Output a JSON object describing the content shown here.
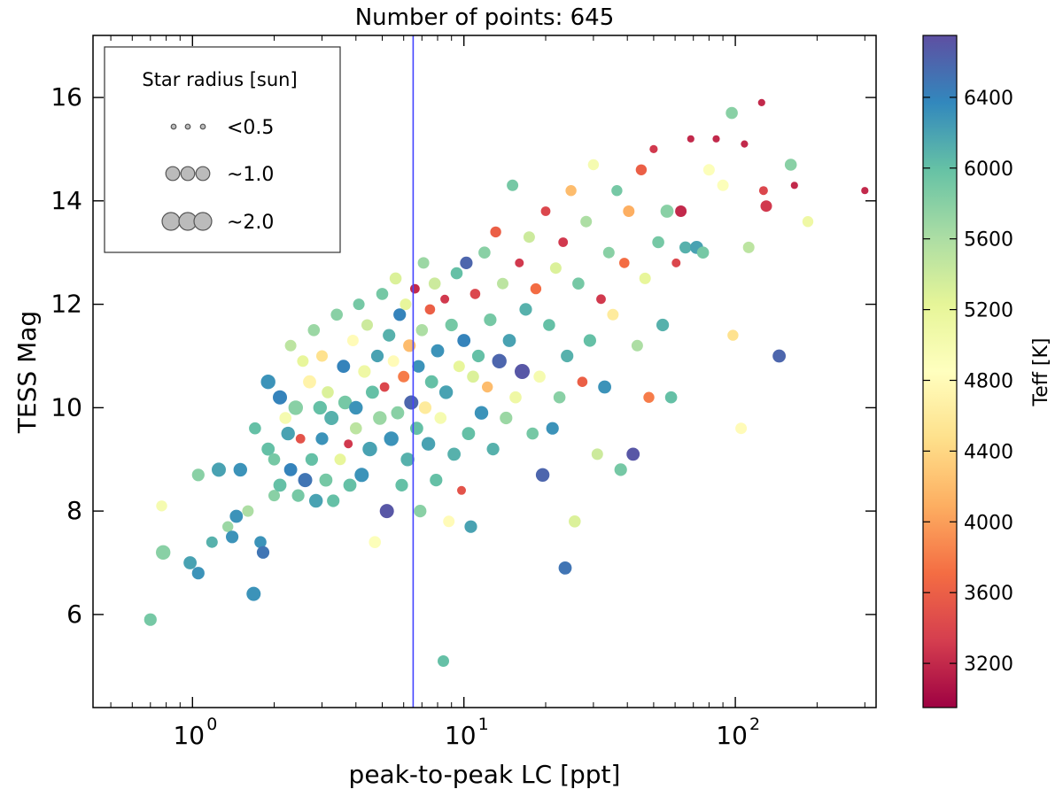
{
  "chart_data": {
    "type": "scatter",
    "title": "Number of points: 645",
    "xlabel": "peak-to-peak LC [ppt]",
    "ylabel": "TESS Mag",
    "xscale": "log",
    "xlim": [
      0.43,
      330
    ],
    "ylim": [
      4.2,
      17.2
    ],
    "xticks": [
      {
        "value": 1,
        "base": "10",
        "exp": "0"
      },
      {
        "value": 10,
        "base": "10",
        "exp": "1"
      },
      {
        "value": 100,
        "base": "10",
        "exp": "2"
      }
    ],
    "yticks": [
      6,
      8,
      10,
      12,
      14,
      16
    ],
    "vline": {
      "x": 6.5,
      "color": "#4444ff"
    },
    "colorbar": {
      "label": "Teff [K]",
      "range": [
        2950,
        6750
      ],
      "ticks": [
        3200,
        3600,
        4000,
        4400,
        4800,
        5200,
        5600,
        6000,
        6400
      ],
      "colormap": "Spectral"
    },
    "legend": {
      "title": "Star radius [sun]",
      "position": "upper-left",
      "entries": [
        {
          "label": "<0.5",
          "radius_sun": 0.3
        },
        {
          "label": "~1.0",
          "radius_sun": 1.0
        },
        {
          "label": "~2.0",
          "radius_sun": 2.0
        }
      ]
    },
    "points_note": "Representative points: [peak-to-peak ppt, TESS mag, Teff K, radius sun]",
    "points": [
      [
        0.7,
        5.9,
        5900,
        1.2
      ],
      [
        0.78,
        7.2,
        5800,
        1.6
      ],
      [
        0.77,
        8.1,
        5000,
        0.9
      ],
      [
        0.98,
        7.0,
        6200,
        1.3
      ],
      [
        1.05,
        6.8,
        6300,
        1.2
      ],
      [
        1.05,
        8.7,
        5800,
        1.2
      ],
      [
        1.18,
        7.4,
        6100,
        1.0
      ],
      [
        1.25,
        8.8,
        6200,
        1.5
      ],
      [
        1.35,
        7.7,
        5700,
        0.9
      ],
      [
        1.4,
        7.5,
        6300,
        1.2
      ],
      [
        1.45,
        7.9,
        6300,
        1.3
      ],
      [
        1.5,
        8.8,
        6300,
        1.4
      ],
      [
        1.6,
        8.0,
        5600,
        1.0
      ],
      [
        1.68,
        6.4,
        6300,
        1.5
      ],
      [
        1.7,
        9.6,
        6000,
        1.1
      ],
      [
        1.78,
        7.4,
        6300,
        1.1
      ],
      [
        1.82,
        7.2,
        6500,
        1.2
      ],
      [
        1.9,
        9.2,
        6000,
        1.3
      ],
      [
        1.9,
        10.5,
        6300,
        1.6
      ],
      [
        2.0,
        9.0,
        5900,
        1.1
      ],
      [
        2.0,
        8.3,
        5800,
        1.0
      ],
      [
        2.1,
        10.2,
        6400,
        1.5
      ],
      [
        2.1,
        8.5,
        6000,
        1.3
      ],
      [
        2.2,
        9.8,
        5000,
        1.1
      ],
      [
        2.25,
        9.5,
        6200,
        1.4
      ],
      [
        2.3,
        11.2,
        5500,
        1.0
      ],
      [
        2.3,
        8.8,
        6400,
        1.3
      ],
      [
        2.4,
        10.0,
        5800,
        1.6
      ],
      [
        2.45,
        8.3,
        5900,
        1.2
      ],
      [
        2.5,
        9.4,
        3500,
        0.7
      ],
      [
        2.55,
        10.9,
        5200,
        1.0
      ],
      [
        2.6,
        8.6,
        6500,
        1.5
      ],
      [
        2.7,
        10.5,
        4700,
        1.3
      ],
      [
        2.75,
        9.0,
        6000,
        1.2
      ],
      [
        2.8,
        11.5,
        5700,
        1.1
      ],
      [
        2.85,
        8.2,
        6200,
        1.4
      ],
      [
        2.95,
        10.0,
        6000,
        1.4
      ],
      [
        3.0,
        9.4,
        6300,
        1.2
      ],
      [
        3.0,
        11.0,
        4500,
        1.0
      ],
      [
        3.1,
        8.6,
        5900,
        1.3
      ],
      [
        3.15,
        10.3,
        5300,
        1.1
      ],
      [
        3.25,
        9.8,
        6100,
        1.5
      ],
      [
        3.3,
        8.2,
        6000,
        1.2
      ],
      [
        3.4,
        11.8,
        5800,
        1.1
      ],
      [
        3.5,
        9.0,
        5200,
        1.0
      ],
      [
        3.6,
        10.8,
        6400,
        1.3
      ],
      [
        3.65,
        10.1,
        5900,
        1.4
      ],
      [
        3.75,
        9.3,
        3300,
        0.6
      ],
      [
        3.8,
        8.5,
        6000,
        1.3
      ],
      [
        3.9,
        11.3,
        4800,
        1.0
      ],
      [
        4.0,
        10.0,
        6300,
        1.4
      ],
      [
        4.0,
        9.6,
        5500,
        1.1
      ],
      [
        4.1,
        12.0,
        5900,
        1.0
      ],
      [
        4.2,
        8.7,
        6300,
        1.5
      ],
      [
        4.3,
        10.7,
        5100,
        1.2
      ],
      [
        4.4,
        11.6,
        5400,
        1.0
      ],
      [
        4.5,
        9.2,
        6200,
        1.6
      ],
      [
        4.6,
        10.3,
        6000,
        1.3
      ],
      [
        4.7,
        7.4,
        4900,
        1.1
      ],
      [
        4.8,
        11.0,
        6200,
        1.2
      ],
      [
        4.9,
        9.8,
        5700,
        1.4
      ],
      [
        5.0,
        12.2,
        5900,
        1.1
      ],
      [
        5.1,
        10.4,
        3400,
        0.7
      ],
      [
        5.2,
        8.0,
        6700,
        1.5
      ],
      [
        5.3,
        11.4,
        6100,
        1.2
      ],
      [
        5.4,
        9.4,
        6300,
        1.6
      ],
      [
        5.5,
        10.9,
        4800,
        1.0
      ],
      [
        5.6,
        12.5,
        5300,
        1.1
      ],
      [
        5.7,
        9.9,
        5800,
        1.3
      ],
      [
        5.8,
        11.8,
        6400,
        1.2
      ],
      [
        5.9,
        8.5,
        6000,
        1.2
      ],
      [
        6.0,
        10.6,
        3800,
        1.0
      ],
      [
        6.1,
        12.0,
        5200,
        1.0
      ],
      [
        6.2,
        9.0,
        6100,
        1.4
      ],
      [
        6.3,
        11.2,
        4200,
        1.2
      ],
      [
        6.4,
        10.1,
        6600,
        1.5
      ],
      [
        6.6,
        12.3,
        3200,
        0.7
      ],
      [
        6.7,
        9.6,
        6000,
        1.3
      ],
      [
        6.8,
        10.8,
        6300,
        1.2
      ],
      [
        6.9,
        8.0,
        5800,
        1.2
      ],
      [
        7.0,
        11.5,
        5600,
        1.1
      ],
      [
        7.1,
        12.8,
        5700,
        1.0
      ],
      [
        7.2,
        10.0,
        4600,
        1.2
      ],
      [
        7.4,
        9.3,
        6200,
        1.4
      ],
      [
        7.5,
        11.9,
        3600,
        0.8
      ],
      [
        7.6,
        10.5,
        6000,
        1.3
      ],
      [
        7.8,
        12.4,
        5400,
        1.1
      ],
      [
        7.9,
        8.6,
        6000,
        1.2
      ],
      [
        8.0,
        11.1,
        6300,
        1.3
      ],
      [
        8.2,
        9.8,
        5000,
        1.1
      ],
      [
        8.4,
        5.1,
        6000,
        1.0
      ],
      [
        8.5,
        12.1,
        3300,
        0.6
      ],
      [
        8.6,
        10.3,
        6200,
        1.4
      ],
      [
        8.8,
        7.8,
        4800,
        1.0
      ],
      [
        9.0,
        11.6,
        5900,
        1.2
      ],
      [
        9.2,
        9.1,
        6100,
        1.3
      ],
      [
        9.4,
        12.6,
        6000,
        1.1
      ],
      [
        9.6,
        10.8,
        5200,
        1.0
      ],
      [
        9.8,
        8.4,
        3500,
        0.6
      ],
      [
        10.0,
        11.3,
        6400,
        1.3
      ],
      [
        10.2,
        12.8,
        6600,
        1.2
      ],
      [
        10.4,
        9.5,
        6000,
        1.3
      ],
      [
        10.6,
        7.7,
        6200,
        1.2
      ],
      [
        10.8,
        10.6,
        5300,
        1.1
      ],
      [
        11.0,
        12.2,
        3400,
        0.8
      ],
      [
        11.3,
        11.0,
        6000,
        1.2
      ],
      [
        11.6,
        9.9,
        6300,
        1.4
      ],
      [
        11.9,
        13.0,
        5800,
        1.1
      ],
      [
        12.2,
        10.4,
        4200,
        0.9
      ],
      [
        12.5,
        11.7,
        5900,
        1.2
      ],
      [
        12.8,
        9.2,
        6100,
        1.2
      ],
      [
        13.1,
        13.4,
        3600,
        0.9
      ],
      [
        13.5,
        10.9,
        6600,
        1.6
      ],
      [
        13.9,
        12.4,
        5500,
        1.0
      ],
      [
        14.3,
        9.8,
        5700,
        1.2
      ],
      [
        14.7,
        11.3,
        6200,
        1.3
      ],
      [
        15.1,
        14.3,
        5900,
        1.0
      ],
      [
        15.5,
        10.2,
        5100,
        1.1
      ],
      [
        16.0,
        12.8,
        3300,
        0.6
      ],
      [
        16.4,
        10.7,
        6700,
        1.7
      ],
      [
        16.9,
        11.9,
        6100,
        1.2
      ],
      [
        17.4,
        13.3,
        5400,
        1.0
      ],
      [
        17.9,
        9.5,
        5900,
        1.1
      ],
      [
        18.4,
        12.3,
        3700,
        0.9
      ],
      [
        19.0,
        10.6,
        5000,
        1.1
      ],
      [
        19.5,
        8.7,
        6600,
        1.4
      ],
      [
        20.0,
        13.8,
        3400,
        0.7
      ],
      [
        20.6,
        11.6,
        6000,
        1.1
      ],
      [
        21.2,
        9.6,
        6300,
        1.2
      ],
      [
        21.8,
        12.7,
        5300,
        1.0
      ],
      [
        22.5,
        10.2,
        5800,
        1.1
      ],
      [
        23.2,
        13.2,
        3300,
        0.7
      ],
      [
        23.6,
        6.9,
        6500,
        1.3
      ],
      [
        24.0,
        11.0,
        6100,
        1.2
      ],
      [
        24.8,
        14.2,
        4200,
        0.9
      ],
      [
        25.6,
        7.8,
        5300,
        1.1
      ],
      [
        26.4,
        12.4,
        5900,
        1.1
      ],
      [
        27.3,
        10.5,
        3600,
        0.8
      ],
      [
        28.2,
        13.6,
        5600,
        1.0
      ],
      [
        29.1,
        11.3,
        6000,
        1.2
      ],
      [
        30.0,
        14.7,
        5000,
        0.9
      ],
      [
        31.0,
        9.1,
        5400,
        1.0
      ],
      [
        32.0,
        12.1,
        3300,
        0.7
      ],
      [
        33.0,
        10.4,
        6300,
        1.3
      ],
      [
        34.2,
        13.0,
        5800,
        1.0
      ],
      [
        35.4,
        11.8,
        4600,
        1.0
      ],
      [
        36.6,
        14.2,
        5900,
        0.9
      ],
      [
        37.8,
        8.8,
        5900,
        1.2
      ],
      [
        39.0,
        12.8,
        3700,
        0.8
      ],
      [
        40.5,
        13.8,
        4100,
        1.0
      ],
      [
        42.0,
        9.1,
        6700,
        1.3
      ],
      [
        43.5,
        11.2,
        5600,
        1.0
      ],
      [
        45.0,
        14.6,
        3600,
        0.9
      ],
      [
        46.5,
        12.5,
        5200,
        1.0
      ],
      [
        48.0,
        10.2,
        3800,
        0.9
      ],
      [
        50.0,
        15.0,
        3300,
        0.5
      ],
      [
        52.0,
        13.2,
        5900,
        1.1
      ],
      [
        54.0,
        11.6,
        6100,
        1.2
      ],
      [
        56.0,
        13.8,
        5800,
        1.3
      ],
      [
        58.0,
        10.2,
        6000,
        1.1
      ],
      [
        60.5,
        12.8,
        3400,
        0.6
      ],
      [
        63.0,
        13.8,
        3200,
        1.0
      ],
      [
        65.5,
        13.1,
        6100,
        1.1
      ],
      [
        68.5,
        15.2,
        3200,
        0.4
      ],
      [
        72.0,
        13.1,
        6200,
        1.3
      ],
      [
        76.0,
        13.0,
        5900,
        1.1
      ],
      [
        80.0,
        14.6,
        4900,
        1.0
      ],
      [
        85.0,
        15.2,
        3200,
        0.4
      ],
      [
        90.0,
        14.3,
        4900,
        1.0
      ],
      [
        97.0,
        15.7,
        5800,
        1.1
      ],
      [
        98.0,
        11.4,
        4500,
        0.9
      ],
      [
        105.0,
        9.6,
        4800,
        1.0
      ],
      [
        108.0,
        15.1,
        3200,
        0.4
      ],
      [
        112.0,
        13.1,
        5500,
        1.0
      ],
      [
        125.0,
        15.9,
        3200,
        0.4
      ],
      [
        127.0,
        14.2,
        3400,
        0.6
      ],
      [
        130.0,
        13.9,
        3300,
        1.0
      ],
      [
        145.0,
        11.0,
        6600,
        1.3
      ],
      [
        160.0,
        14.7,
        5800,
        1.1
      ],
      [
        165.0,
        14.3,
        3200,
        0.4
      ],
      [
        185.0,
        13.6,
        5100,
        0.9
      ],
      [
        300.0,
        14.2,
        3200,
        0.4
      ]
    ]
  }
}
